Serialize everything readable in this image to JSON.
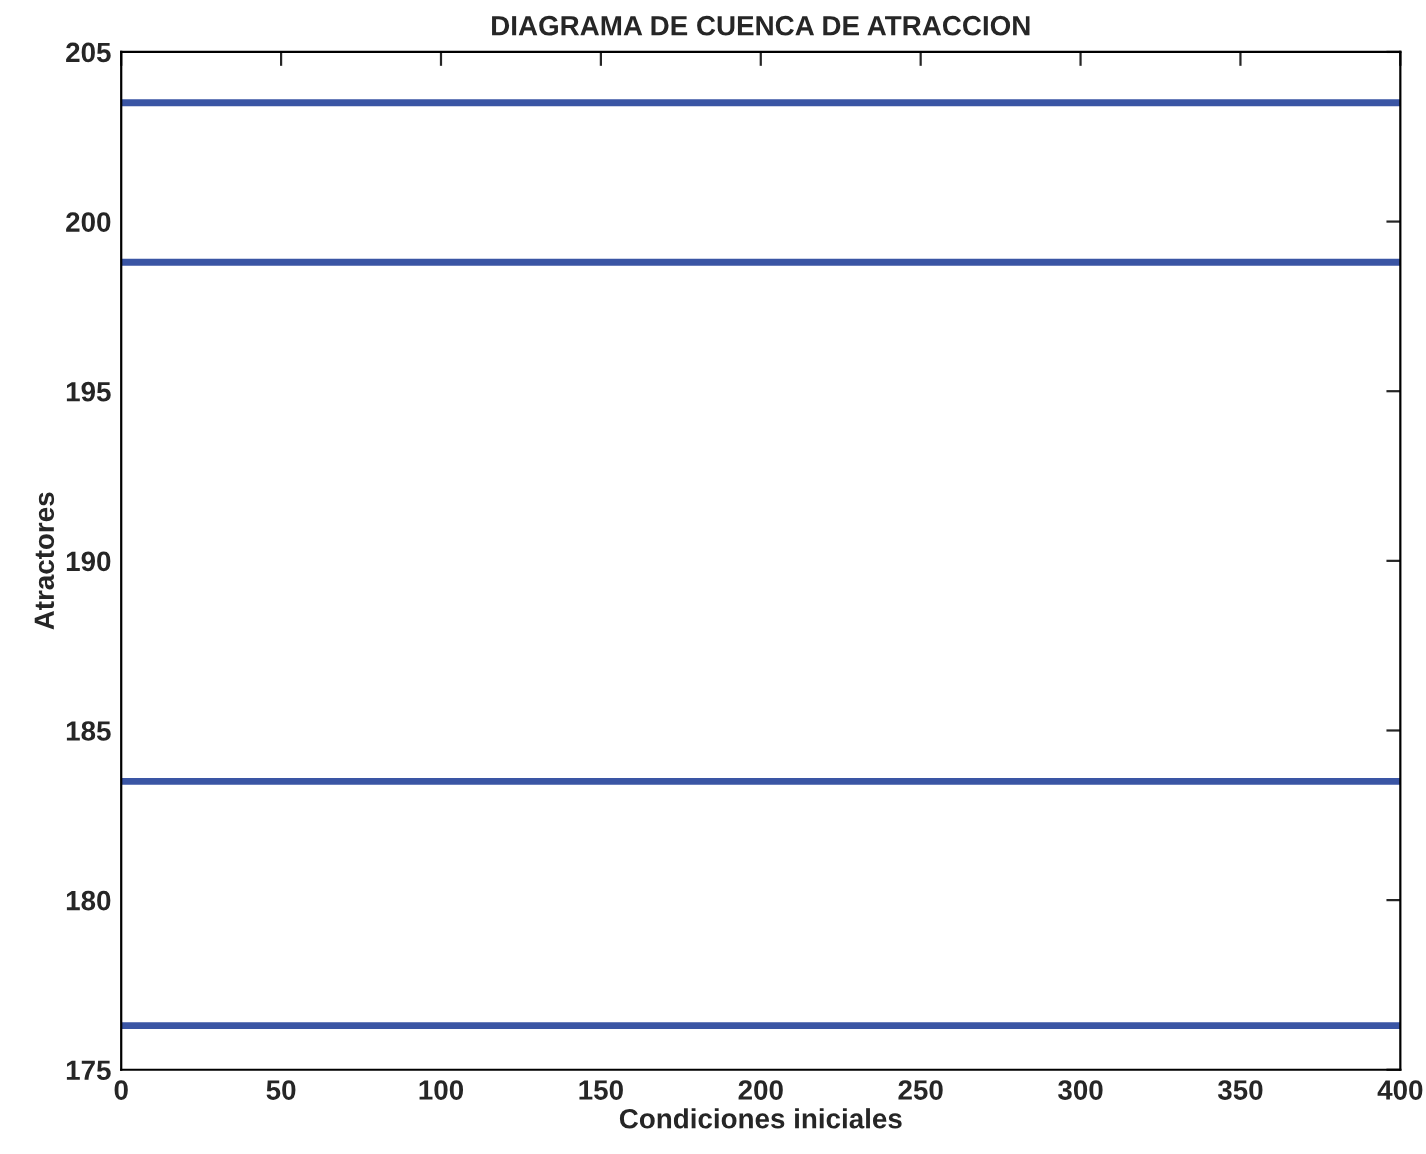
{
  "chart_data": {
    "type": "line",
    "title": "DIAGRAMA DE CUENCA DE ATRACCION",
    "xlabel": "Condiciones iniciales",
    "ylabel": "Atractores",
    "x": [
      0,
      400
    ],
    "series": [
      {
        "color": "#3a55a4",
        "values": [
          203.5,
          203.5
        ]
      },
      {
        "color": "#3a55a4",
        "values": [
          198.8,
          198.8
        ]
      },
      {
        "color": "#3a55a4",
        "values": [
          183.5,
          183.5
        ]
      },
      {
        "color": "#3a55a4",
        "values": [
          176.3,
          176.3
        ]
      }
    ],
    "xlim": [
      0,
      400
    ],
    "xticks": [
      0,
      50,
      100,
      150,
      200,
      250,
      300,
      350,
      400
    ],
    "ylim": [
      175,
      205
    ],
    "yticks": [
      175,
      180,
      185,
      190,
      195,
      200,
      205
    ],
    "grid": false,
    "marker": "none",
    "line_style": "solid"
  }
}
